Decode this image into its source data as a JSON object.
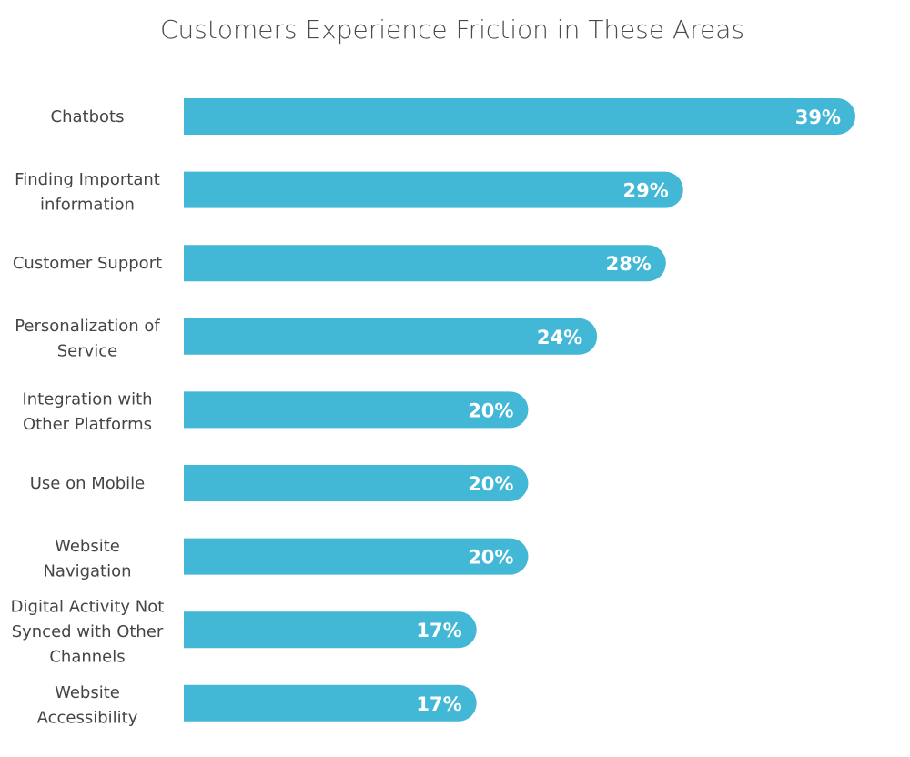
{
  "chart_data": {
    "type": "bar",
    "orientation": "horizontal",
    "title": "Customers Experience Friction in These Areas",
    "xlabel": "",
    "ylabel": "",
    "xlim": [
      0,
      39
    ],
    "grid": false,
    "unit": "%",
    "categories": [
      [
        "Chatbots"
      ],
      [
        "Finding Important",
        "information"
      ],
      [
        "Customer Support"
      ],
      [
        "Personalization of",
        "Service"
      ],
      [
        "Integration with",
        "Other Platforms"
      ],
      [
        "Use on Mobile"
      ],
      [
        "Website",
        "Navigation"
      ],
      [
        "Digital Activity Not",
        "Synced with Other",
        "Channels"
      ],
      [
        "Website",
        "Accessibility"
      ]
    ],
    "values": [
      39,
      29,
      28,
      24,
      20,
      20,
      20,
      17,
      17
    ],
    "value_labels": [
      "39%",
      "29%",
      "28%",
      "24%",
      "20%",
      "20%",
      "20%",
      "17%",
      "17%"
    ],
    "bar_color": "#42B7D6"
  }
}
